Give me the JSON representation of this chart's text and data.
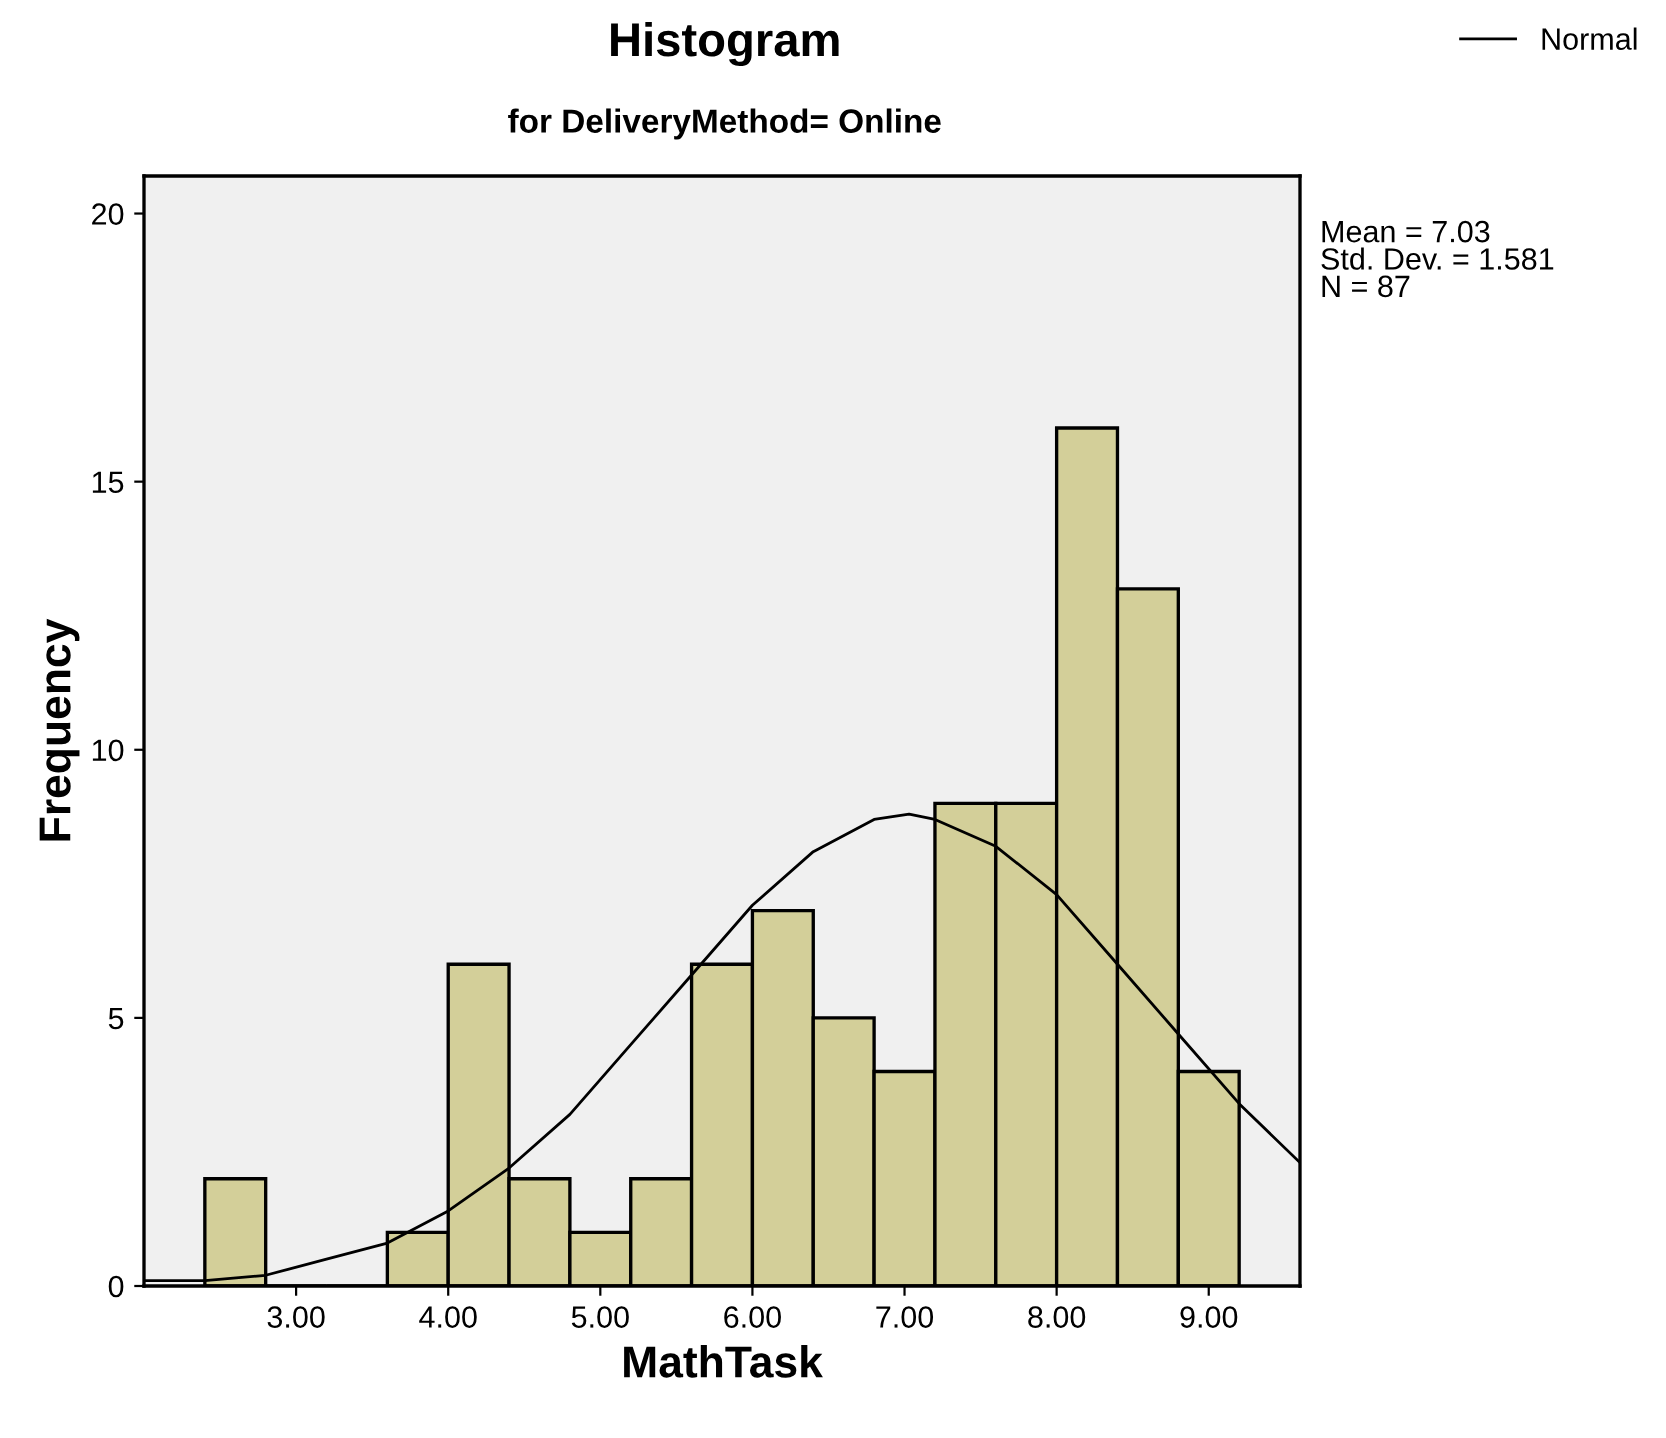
{
  "chart_data": {
    "type": "histogram",
    "title": "Histogram",
    "subtitle": "for DeliveryMethod= Online",
    "xlabel": "MathTask",
    "ylabel": "Frequency",
    "bins": [
      2.4,
      2.8,
      3.2,
      3.6,
      4.0,
      4.4,
      4.8,
      5.2,
      5.6,
      6.0,
      6.4,
      6.8,
      7.2,
      7.6,
      8.0,
      8.4,
      8.8,
      9.2
    ],
    "values": [
      2,
      0,
      0,
      1,
      6,
      2,
      1,
      2,
      6,
      7,
      5,
      4,
      9,
      9,
      16,
      13,
      4
    ],
    "color": "#d3cf99",
    "series": [
      {
        "type": "line",
        "name": "Normal",
        "color": "#000000",
        "x": [
          2.0,
          2.4,
          2.8,
          3.2,
          3.6,
          4.0,
          4.4,
          4.8,
          5.2,
          5.6,
          6.0,
          6.4,
          6.8,
          7.03,
          7.2,
          7.6,
          8.0,
          8.4,
          8.8,
          9.2,
          9.6
        ],
        "values": [
          0.1,
          0.1,
          0.2,
          0.5,
          0.8,
          1.4,
          2.2,
          3.2,
          4.5,
          5.8,
          7.1,
          8.1,
          8.7,
          8.8,
          8.7,
          8.2,
          7.3,
          6.0,
          4.7,
          3.4,
          2.3
        ]
      }
    ],
    "annotations": [
      "Mean = 7.03\nStd. Dev. = 1.581\nN = 87"
    ],
    "xlim": [
      2.0,
      9.6
    ],
    "ylim": [
      0,
      20.7
    ],
    "xticks": [
      {
        "value": 3,
        "label": "3.00"
      },
      {
        "value": 4,
        "label": "4.00"
      },
      {
        "value": 5,
        "label": "5.00"
      },
      {
        "value": 6,
        "label": "6.00"
      },
      {
        "value": 7,
        "label": "7.00"
      },
      {
        "value": 8,
        "label": "8.00"
      },
      {
        "value": 9,
        "label": "9.00"
      }
    ],
    "yticks": [
      0,
      5,
      10,
      15,
      20
    ],
    "grid": false,
    "legend": "top right"
  }
}
